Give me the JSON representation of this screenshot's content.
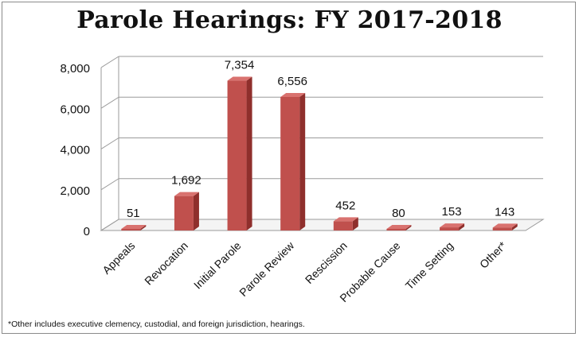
{
  "chart_data": {
    "type": "bar",
    "title": "Parole Hearings: FY 2017-2018",
    "categories": [
      "Appeals",
      "Revocation",
      "Initial Parole",
      "Parole Review",
      "Rescission",
      "Probable Cause",
      "Time Setting",
      "Other*"
    ],
    "values": [
      51,
      1692,
      7354,
      6556,
      452,
      80,
      153,
      143
    ],
    "value_labels": [
      "51",
      "1,692",
      "7,354",
      "6,556",
      "452",
      "80",
      "153",
      "143"
    ],
    "ylim": [
      0,
      8000
    ],
    "yticks": [
      0,
      2000,
      4000,
      6000,
      8000
    ],
    "ytick_labels": [
      "0",
      "2,000",
      "4,000",
      "6,000",
      "8,000"
    ],
    "grid": true,
    "legend": "none",
    "bar_color": "#c0504d",
    "footnote": "*Other includes executive clemency, custodial, and  foreign jurisdiction, hearings."
  }
}
